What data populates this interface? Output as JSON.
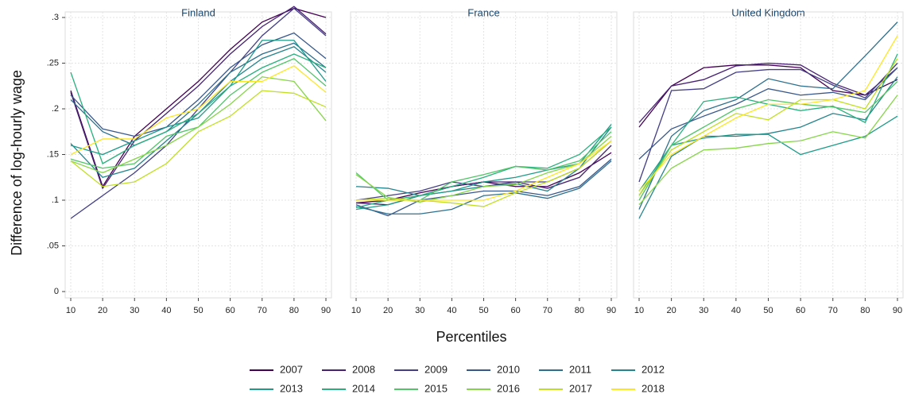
{
  "y_label": "Difference of log-hourly wage",
  "x_label": "Percentiles",
  "ylim": [
    0,
    0.3
  ],
  "yticks": [
    {
      "value": 0,
      "label": "0"
    },
    {
      "value": 0.05,
      "label": ".05"
    },
    {
      "value": 0.1,
      "label": ".1"
    },
    {
      "value": 0.15,
      "label": ".15"
    },
    {
      "value": 0.2,
      "label": ".2"
    },
    {
      "value": 0.25,
      "label": ".25"
    },
    {
      "value": 0.3,
      "label": ".3"
    }
  ],
  "grid": true,
  "legend": [
    {
      "name": "2007",
      "color": "#440154"
    },
    {
      "name": "2008",
      "color": "#482173"
    },
    {
      "name": "2009",
      "color": "#433e85"
    },
    {
      "name": "2010",
      "color": "#38588c"
    },
    {
      "name": "2011",
      "color": "#2d708e"
    },
    {
      "name": "2012",
      "color": "#25858e"
    },
    {
      "name": "2013",
      "color": "#1e9b8a"
    },
    {
      "name": "2014",
      "color": "#2ab07f"
    },
    {
      "name": "2015",
      "color": "#52c569"
    },
    {
      "name": "2016",
      "color": "#86d549"
    },
    {
      "name": "2017",
      "color": "#c2df23"
    },
    {
      "name": "2018",
      "color": "#fde725"
    }
  ],
  "chart_data": [
    {
      "type": "line",
      "title": "Finland",
      "x": [
        10,
        20,
        30,
        40,
        50,
        60,
        70,
        80,
        90
      ],
      "xlim": [
        10,
        90
      ],
      "xticks": [
        10,
        20,
        30,
        40,
        50,
        60,
        70,
        80,
        90
      ],
      "series": [
        {
          "values": [
            0.22,
            0.115,
            0.17,
            0.2,
            0.23,
            0.265,
            0.295,
            0.31,
            0.3
          ]
        },
        {
          "values": [
            0.218,
            0.113,
            0.165,
            0.195,
            0.225,
            0.26,
            0.29,
            0.312,
            0.282
          ]
        },
        {
          "values": [
            0.08,
            0.105,
            0.13,
            0.16,
            0.2,
            0.24,
            0.28,
            0.31,
            0.28
          ]
        },
        {
          "values": [
            0.215,
            0.178,
            0.17,
            0.18,
            0.21,
            0.245,
            0.27,
            0.283,
            0.255
          ]
        },
        {
          "values": [
            0.21,
            0.175,
            0.16,
            0.175,
            0.205,
            0.24,
            0.26,
            0.272,
            0.245
          ]
        },
        {
          "values": [
            0.162,
            0.125,
            0.135,
            0.165,
            0.195,
            0.23,
            0.255,
            0.268,
            0.24
          ]
        },
        {
          "values": [
            0.16,
            0.15,
            0.165,
            0.18,
            0.19,
            0.225,
            0.275,
            0.275,
            0.23
          ]
        },
        {
          "values": [
            0.24,
            0.14,
            0.16,
            0.175,
            0.195,
            0.225,
            0.245,
            0.26,
            0.245
          ]
        },
        {
          "values": [
            0.145,
            0.135,
            0.14,
            0.17,
            0.18,
            0.215,
            0.24,
            0.255,
            0.225
          ]
        },
        {
          "values": [
            0.143,
            0.13,
            0.145,
            0.16,
            0.18,
            0.205,
            0.235,
            0.23,
            0.187
          ]
        },
        {
          "values": [
            0.143,
            0.115,
            0.12,
            0.14,
            0.175,
            0.192,
            0.22,
            0.217,
            0.202
          ]
        },
        {
          "values": [
            0.15,
            0.167,
            0.167,
            0.19,
            0.2,
            0.23,
            0.23,
            0.247,
            0.218
          ]
        }
      ]
    },
    {
      "type": "line",
      "title": "France",
      "x": [
        10,
        20,
        30,
        40,
        50,
        60,
        70,
        80,
        90
      ],
      "xlim": [
        10,
        90
      ],
      "xticks": [
        10,
        20,
        30,
        40,
        50,
        60,
        70,
        80,
        90
      ],
      "series": [
        {
          "values": [
            0.097,
            0.1,
            0.108,
            0.115,
            0.12,
            0.115,
            0.115,
            0.13,
            0.152
          ]
        },
        {
          "values": [
            0.097,
            0.095,
            0.105,
            0.115,
            0.12,
            0.12,
            0.113,
            0.125,
            0.16
          ]
        },
        {
          "values": [
            0.1,
            0.105,
            0.11,
            0.12,
            0.115,
            0.12,
            0.12,
            0.135,
            0.165
          ]
        },
        {
          "values": [
            0.095,
            0.083,
            0.1,
            0.105,
            0.11,
            0.11,
            0.105,
            0.115,
            0.145
          ]
        },
        {
          "values": [
            0.093,
            0.085,
            0.085,
            0.09,
            0.105,
            0.108,
            0.102,
            0.113,
            0.143
          ]
        },
        {
          "values": [
            0.115,
            0.113,
            0.105,
            0.11,
            0.115,
            0.118,
            0.11,
            0.135,
            0.18
          ]
        },
        {
          "values": [
            0.09,
            0.095,
            0.105,
            0.11,
            0.12,
            0.125,
            0.133,
            0.14,
            0.183
          ]
        },
        {
          "values": [
            0.092,
            0.1,
            0.105,
            0.115,
            0.125,
            0.137,
            0.135,
            0.15,
            0.18
          ]
        },
        {
          "values": [
            0.13,
            0.1,
            0.1,
            0.12,
            0.128,
            0.137,
            0.133,
            0.143,
            0.175
          ]
        },
        {
          "values": [
            0.128,
            0.103,
            0.098,
            0.105,
            0.115,
            0.117,
            0.13,
            0.14,
            0.17
          ]
        },
        {
          "values": [
            0.1,
            0.102,
            0.1,
            0.097,
            0.093,
            0.108,
            0.12,
            0.135,
            0.165
          ]
        },
        {
          "values": [
            0.1,
            0.1,
            0.1,
            0.1,
            0.1,
            0.11,
            0.125,
            0.14,
            0.165
          ]
        }
      ]
    },
    {
      "type": "line",
      "title": "United Kingdom",
      "x": [
        10,
        20,
        30,
        40,
        50,
        60,
        70,
        80,
        90
      ],
      "xlim": [
        10,
        90
      ],
      "xticks": [
        10,
        20,
        30,
        40,
        50,
        60,
        70,
        80,
        90
      ],
      "series": [
        {
          "values": [
            0.18,
            0.225,
            0.245,
            0.248,
            0.248,
            0.245,
            0.22,
            0.215,
            0.232
          ]
        },
        {
          "values": [
            0.185,
            0.225,
            0.232,
            0.247,
            0.25,
            0.248,
            0.228,
            0.215,
            0.245
          ]
        },
        {
          "values": [
            0.12,
            0.22,
            0.222,
            0.24,
            0.243,
            0.243,
            0.226,
            0.212,
            0.25
          ]
        },
        {
          "values": [
            0.145,
            0.178,
            0.192,
            0.205,
            0.222,
            0.215,
            0.218,
            0.21,
            0.245
          ]
        },
        {
          "values": [
            0.09,
            0.17,
            0.198,
            0.21,
            0.233,
            0.225,
            0.222,
            0.258,
            0.295
          ]
        },
        {
          "values": [
            0.08,
            0.148,
            0.17,
            0.17,
            0.173,
            0.18,
            0.195,
            0.188,
            0.235
          ]
        },
        {
          "values": [
            0.11,
            0.16,
            0.168,
            0.172,
            0.172,
            0.15,
            0.16,
            0.17,
            0.192
          ]
        },
        {
          "values": [
            0.105,
            0.16,
            0.208,
            0.213,
            0.205,
            0.198,
            0.203,
            0.185,
            0.26
          ]
        },
        {
          "values": [
            0.1,
            0.16,
            0.18,
            0.2,
            0.21,
            0.205,
            0.202,
            0.196,
            0.23
          ]
        },
        {
          "values": [
            0.095,
            0.135,
            0.155,
            0.157,
            0.162,
            0.165,
            0.175,
            0.168,
            0.215
          ]
        },
        {
          "values": [
            0.105,
            0.155,
            0.175,
            0.195,
            0.188,
            0.21,
            0.21,
            0.2,
            0.255
          ]
        },
        {
          "values": [
            0.11,
            0.15,
            0.17,
            0.19,
            0.205,
            0.205,
            0.21,
            0.22,
            0.28
          ]
        }
      ]
    }
  ]
}
